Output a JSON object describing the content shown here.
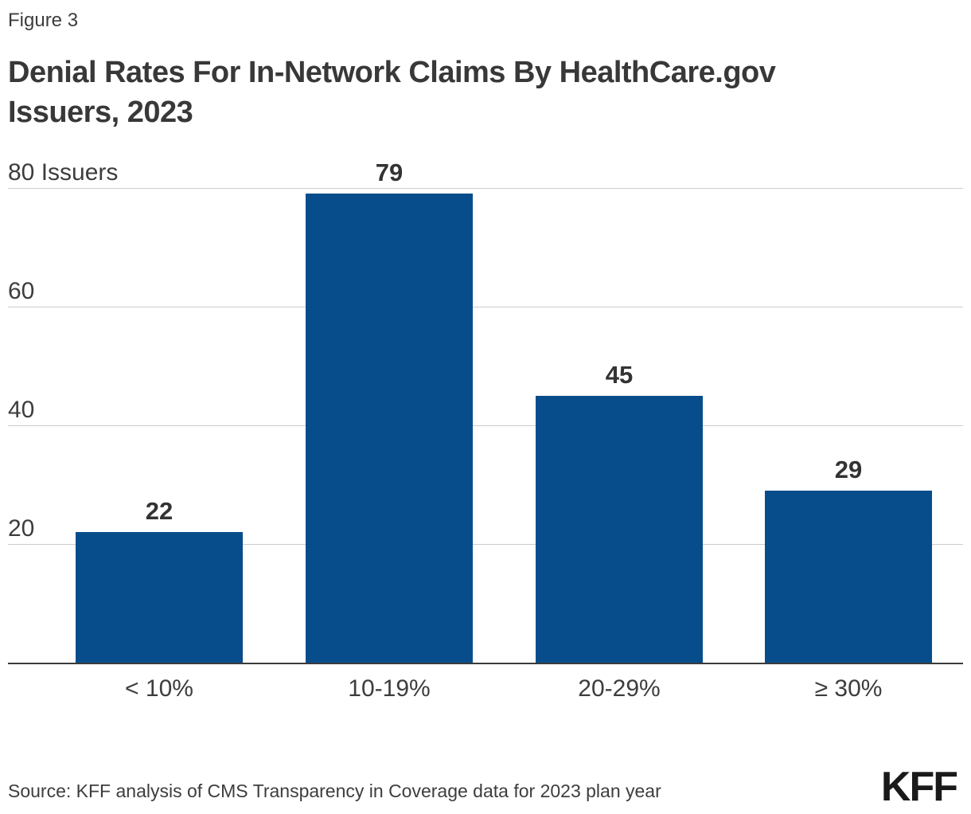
{
  "figure_label": "Figure 3",
  "title_lines": [
    "Denial Rates For In-Network Claims By HealthCare.gov",
    "Issuers, 2023"
  ],
  "chart_data": {
    "type": "bar",
    "title": "Denial Rates For In-Network Claims By HealthCare.gov Issuers, 2023",
    "categories": [
      "< 10%",
      "10-19%",
      "20-29%",
      "≥ 30%"
    ],
    "values": [
      22,
      79,
      45,
      29
    ],
    "xlabel": "",
    "ylabel": "Issuers",
    "ylim": [
      0,
      80
    ],
    "yticks": [
      20,
      40,
      60,
      80
    ],
    "top_tick_label": "80 Issuers",
    "grid": true,
    "legend": "none",
    "value_labels": true
  },
  "colors": {
    "bar": "#074D8C",
    "gridline": "#cccccc",
    "axis": "#3a3a3a",
    "label_text": "#333333",
    "muted_text": "#3d3d3d",
    "logo": "#1a1a1a"
  },
  "source": "Source: KFF analysis of CMS Transparency in Coverage data for 2023 plan year",
  "logo_text": "KFF"
}
